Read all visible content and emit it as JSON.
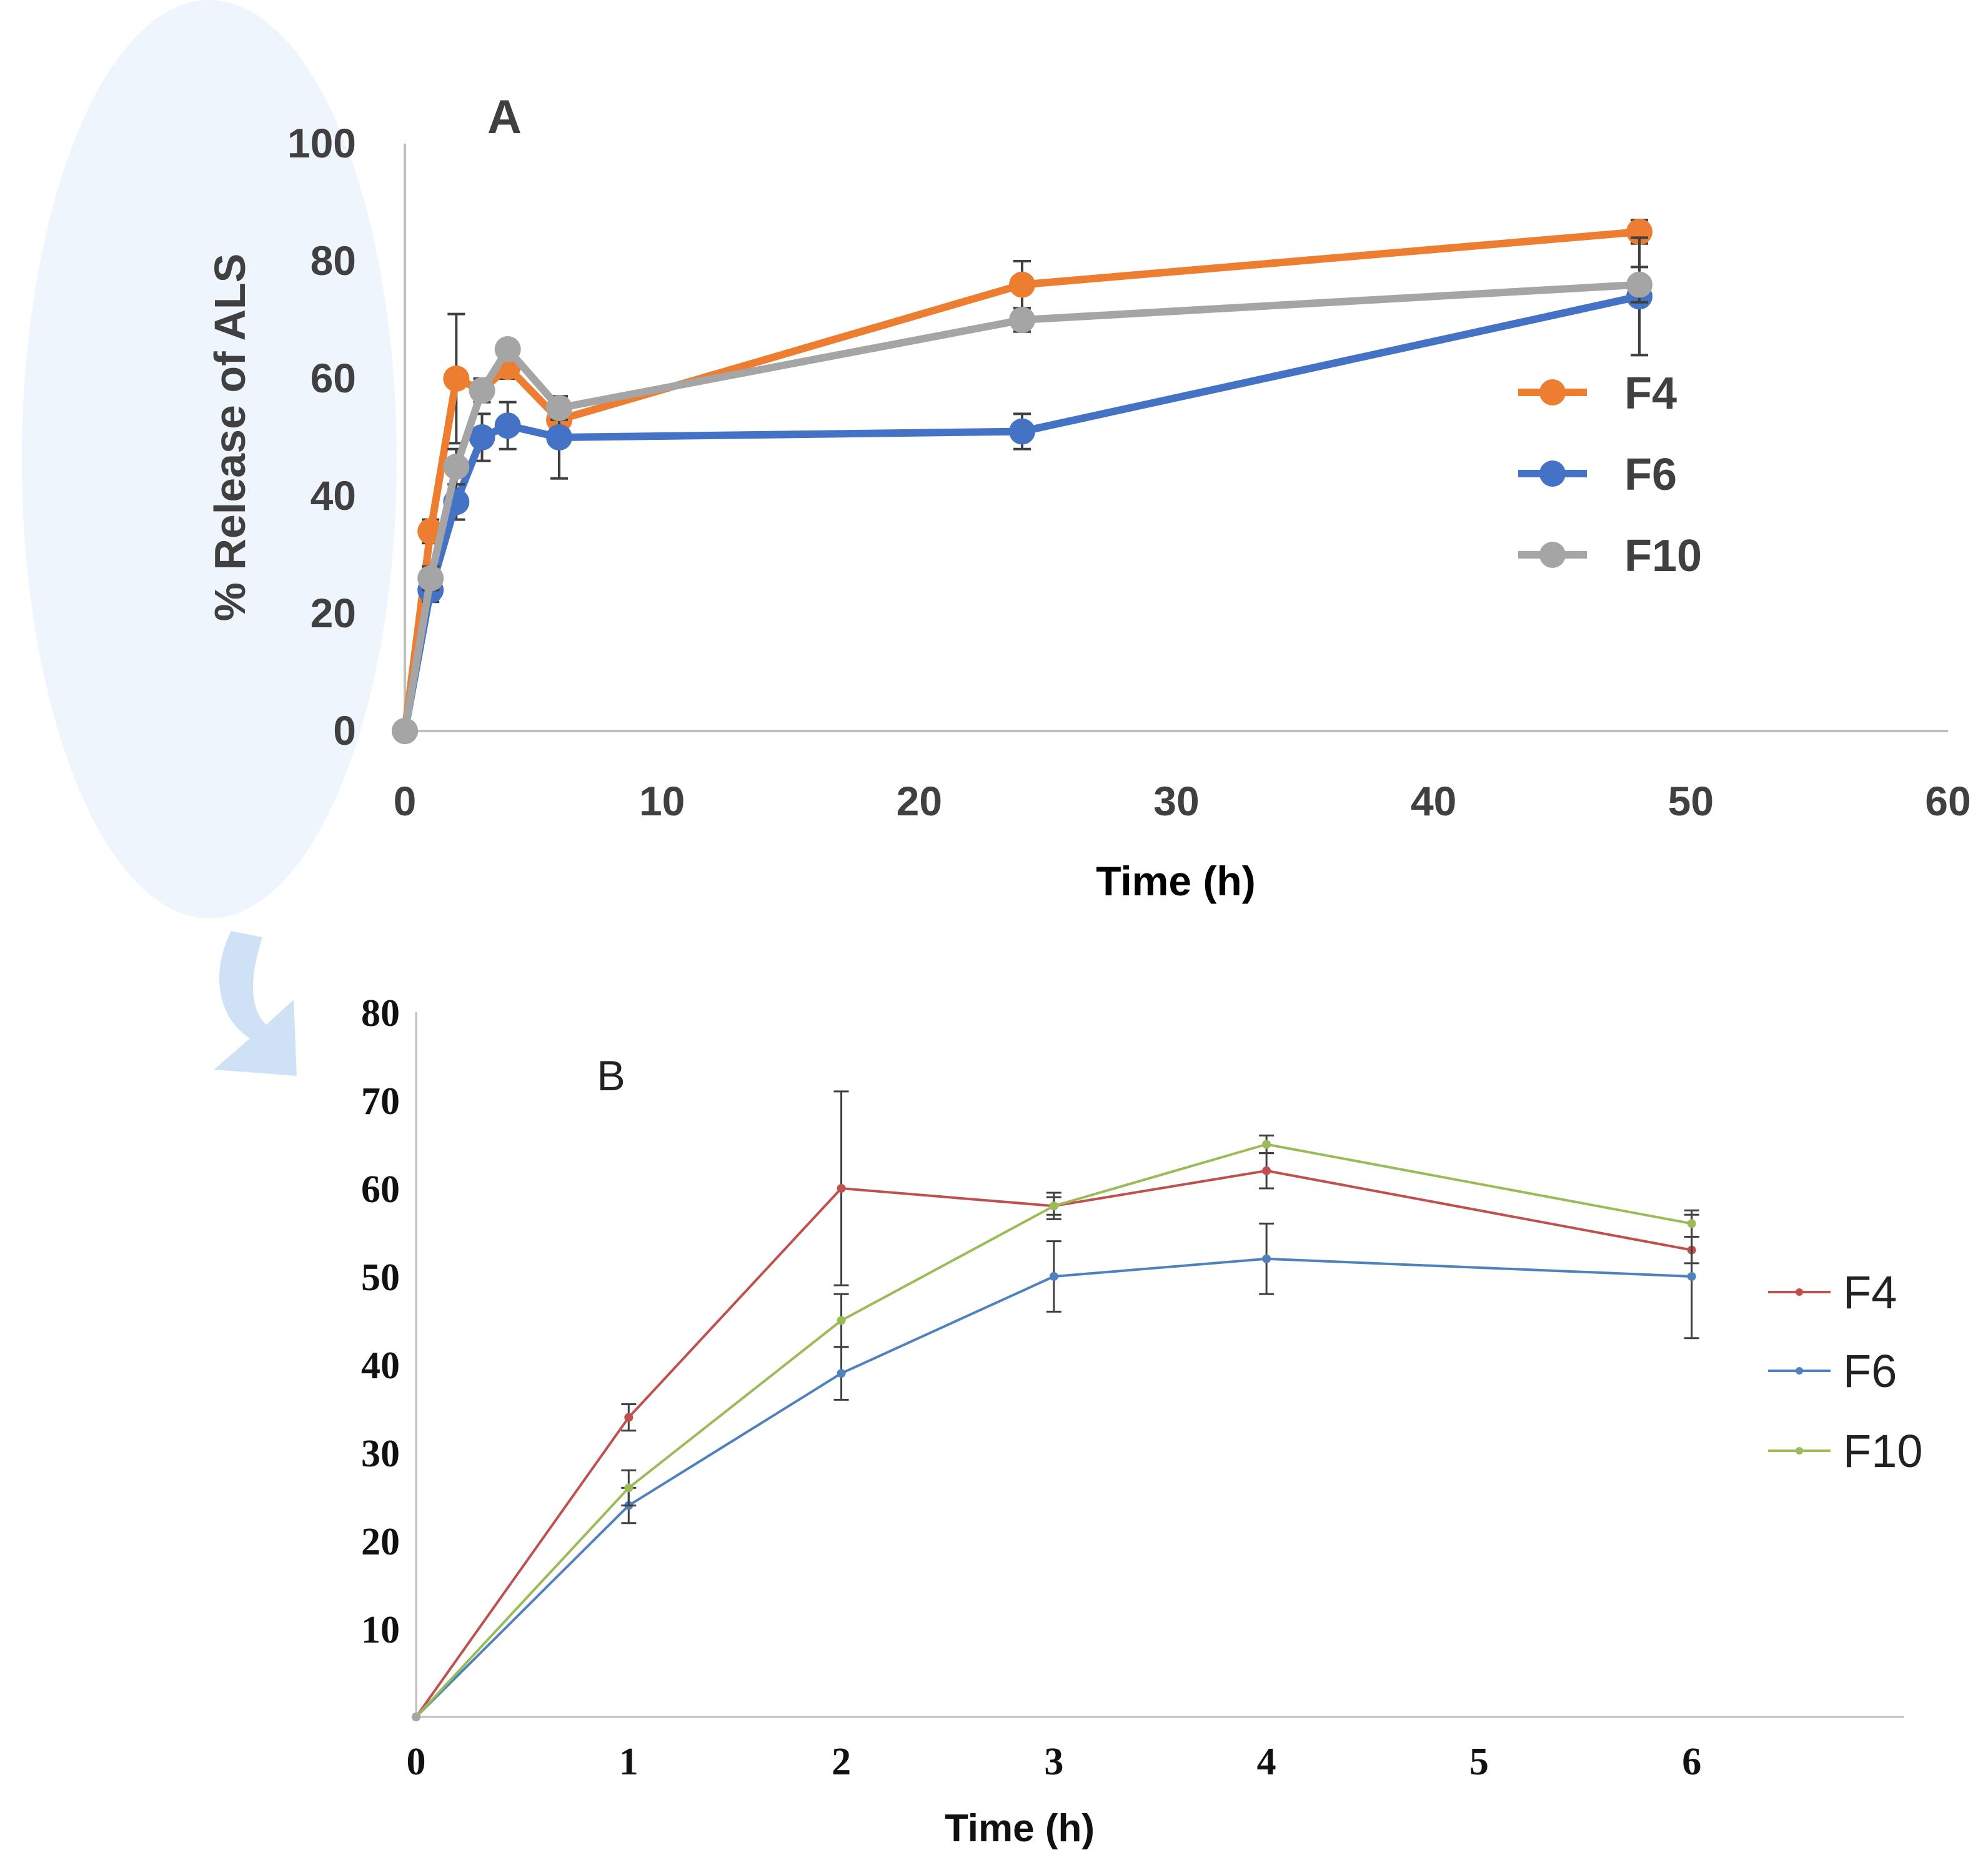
{
  "colors": {
    "background": "#ffffff",
    "bubble": "#eef5fc",
    "arrow": "#cfe2f5",
    "axis": "#bfbfbf",
    "errbar": "#404040",
    "F4_A": "#ED7D31",
    "F6_A": "#4472C4",
    "F10_A": "#A5A5A5",
    "F4_B": "#C0504D",
    "F6_B": "#4F81BD",
    "F10_B": "#9BBB59"
  },
  "chart_data": [
    {
      "id": "A",
      "type": "line",
      "panel_label": "A",
      "title": "",
      "xlabel": "Time (h)",
      "ylabel": "% Release of ALS",
      "xlim": [
        0,
        60
      ],
      "ylim": [
        0,
        100
      ],
      "xticks": [
        0,
        10,
        20,
        30,
        40,
        50,
        60
      ],
      "yticks": [
        0,
        20,
        40,
        60,
        80,
        100
      ],
      "grid": false,
      "legend_position": "right",
      "x": [
        0,
        1,
        2,
        3,
        4,
        6,
        24,
        48
      ],
      "series": [
        {
          "name": "F4",
          "color": "#ED7D31",
          "values": [
            0,
            34,
            60,
            58,
            62,
            53,
            76,
            85
          ],
          "errors": [
            0,
            2,
            11,
            2,
            2,
            2,
            4,
            2
          ]
        },
        {
          "name": "F6",
          "color": "#4472C4",
          "values": [
            0,
            24,
            39,
            50,
            52,
            50,
            51,
            74
          ],
          "errors": [
            0,
            2,
            3,
            4,
            4,
            7,
            3,
            10
          ]
        },
        {
          "name": "F10",
          "color": "#A5A5A5",
          "values": [
            0,
            26,
            45,
            58,
            65,
            55,
            70,
            76
          ],
          "errors": [
            0,
            2,
            3,
            1,
            1,
            2,
            2,
            3
          ]
        }
      ]
    },
    {
      "id": "B",
      "type": "line",
      "panel_label": "B",
      "title": "",
      "xlabel": "Time (h)",
      "ylabel": "",
      "xlim": [
        0,
        7
      ],
      "ylim": [
        0,
        80
      ],
      "xticks": [
        0,
        1,
        2,
        3,
        4,
        5,
        6
      ],
      "yticks": [
        10,
        20,
        30,
        40,
        50,
        60,
        70,
        80
      ],
      "grid": false,
      "legend_position": "right",
      "x": [
        0,
        1,
        2,
        3,
        4,
        6
      ],
      "series": [
        {
          "name": "F4",
          "color": "#C0504D",
          "values": [
            0,
            34,
            60,
            58,
            62,
            53
          ],
          "errors": [
            0,
            1.5,
            11,
            1.5,
            2,
            1.5
          ]
        },
        {
          "name": "F6",
          "color": "#4F81BD",
          "values": [
            0,
            24,
            39,
            50,
            52,
            50
          ],
          "errors": [
            0,
            2,
            3,
            4,
            4,
            7
          ]
        },
        {
          "name": "F10",
          "color": "#9BBB59",
          "values": [
            0,
            26,
            45,
            58,
            65,
            56
          ],
          "errors": [
            0,
            2,
            3,
            1,
            1,
            1.5
          ]
        }
      ]
    }
  ]
}
